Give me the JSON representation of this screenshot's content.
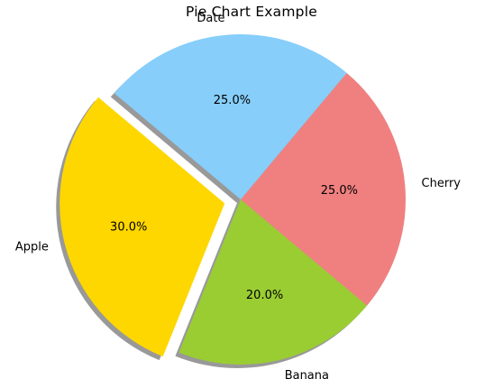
{
  "chart_data": {
    "type": "pie",
    "title": "Pie Chart Example",
    "categories": [
      "Apple",
      "Banana",
      "Cherry",
      "Date"
    ],
    "values": [
      30,
      20,
      25,
      25
    ],
    "percent_labels": [
      "30.0%",
      "20.0%",
      "25.0%",
      "25.0%"
    ],
    "colors": [
      "#FFD700",
      "#9ACD32",
      "#F08080",
      "#87CEFA"
    ],
    "explode": [
      0.1,
      0,
      0,
      0
    ],
    "start_angle_deg": 140,
    "shadow": true,
    "legend": "none"
  }
}
